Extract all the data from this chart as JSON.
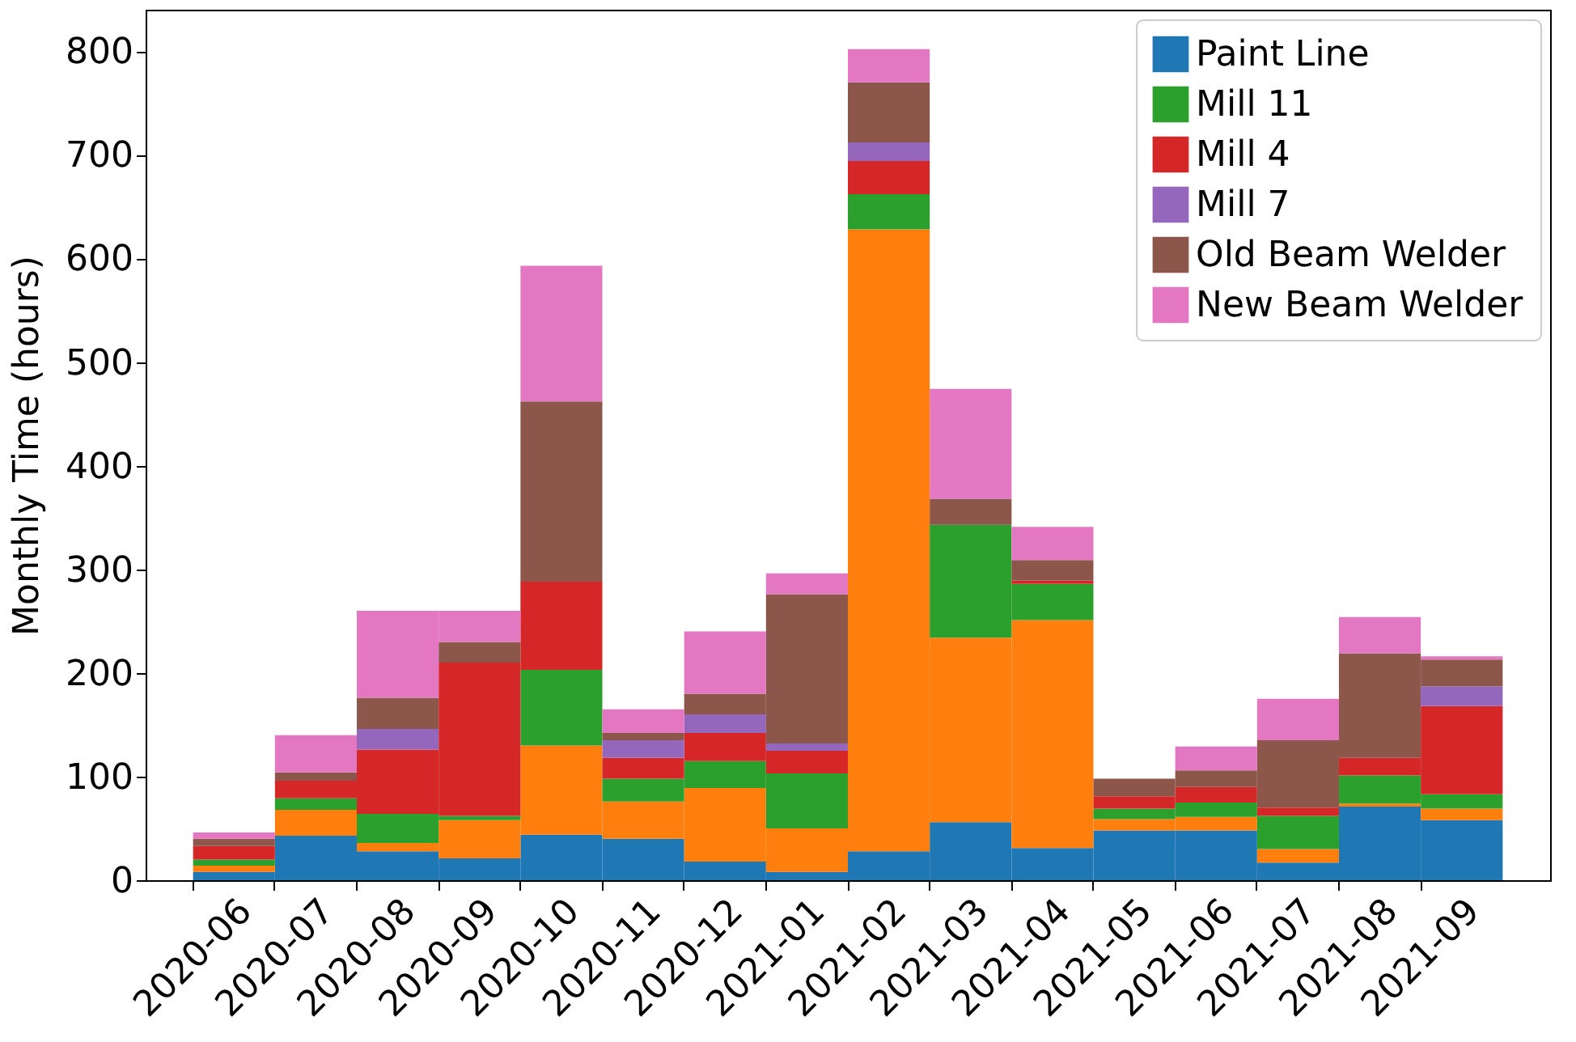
{
  "chart_data": {
    "type": "bar",
    "stacked": true,
    "ylabel": "Monthly Time (hours)",
    "categories": [
      "2020-06",
      "2020-07",
      "2020-08",
      "2020-09",
      "2020-10",
      "2020-11",
      "2020-12",
      "2021-01",
      "2021-02",
      "2021-03",
      "2021-04",
      "2021-05",
      "2021-06",
      "2021-07",
      "2021-08",
      "2021-09"
    ],
    "series": [
      {
        "name": "Paint Line",
        "color": "#1f77b4",
        "values": [
          8,
          43,
          28,
          21,
          44,
          40,
          18,
          8,
          28,
          56,
          31,
          48,
          48,
          17,
          71,
          58
        ]
      },
      {
        "color": "#ff7f0e",
        "values": [
          6,
          25,
          8,
          37,
          86,
          36,
          71,
          42,
          600,
          178,
          220,
          11,
          13,
          13,
          3,
          11
        ]
      },
      {
        "name": "Mill 11",
        "color": "#2ca02c",
        "values": [
          6,
          11,
          28,
          4,
          73,
          22,
          26,
          53,
          34,
          109,
          35,
          10,
          14,
          32,
          27,
          14
        ]
      },
      {
        "name": "Mill 4",
        "color": "#d62728",
        "values": [
          13,
          17,
          62,
          148,
          85,
          20,
          27,
          22,
          32,
          0,
          3,
          12,
          15,
          8,
          17,
          85
        ]
      },
      {
        "name": "Mill 7",
        "color": "#9467bd",
        "values": [
          0,
          0,
          20,
          0,
          0,
          17,
          18,
          7,
          18,
          0,
          0,
          0,
          0,
          0,
          0,
          19
        ]
      },
      {
        "name": "Old Beam Welder",
        "color": "#8c564b",
        "values": [
          7,
          8,
          30,
          20,
          174,
          7,
          20,
          144,
          58,
          25,
          20,
          17,
          16,
          65,
          101,
          26
        ]
      },
      {
        "name": "New Beam Welder",
        "color": "#e377c2",
        "values": [
          6,
          36,
          84,
          30,
          131,
          23,
          60,
          20,
          32,
          106,
          32,
          0,
          23,
          40,
          35,
          3
        ]
      }
    ],
    "ylim": [
      0,
      840
    ],
    "yticks": [
      0,
      100,
      200,
      300,
      400,
      500,
      600,
      700,
      800
    ],
    "legend": "top right"
  }
}
